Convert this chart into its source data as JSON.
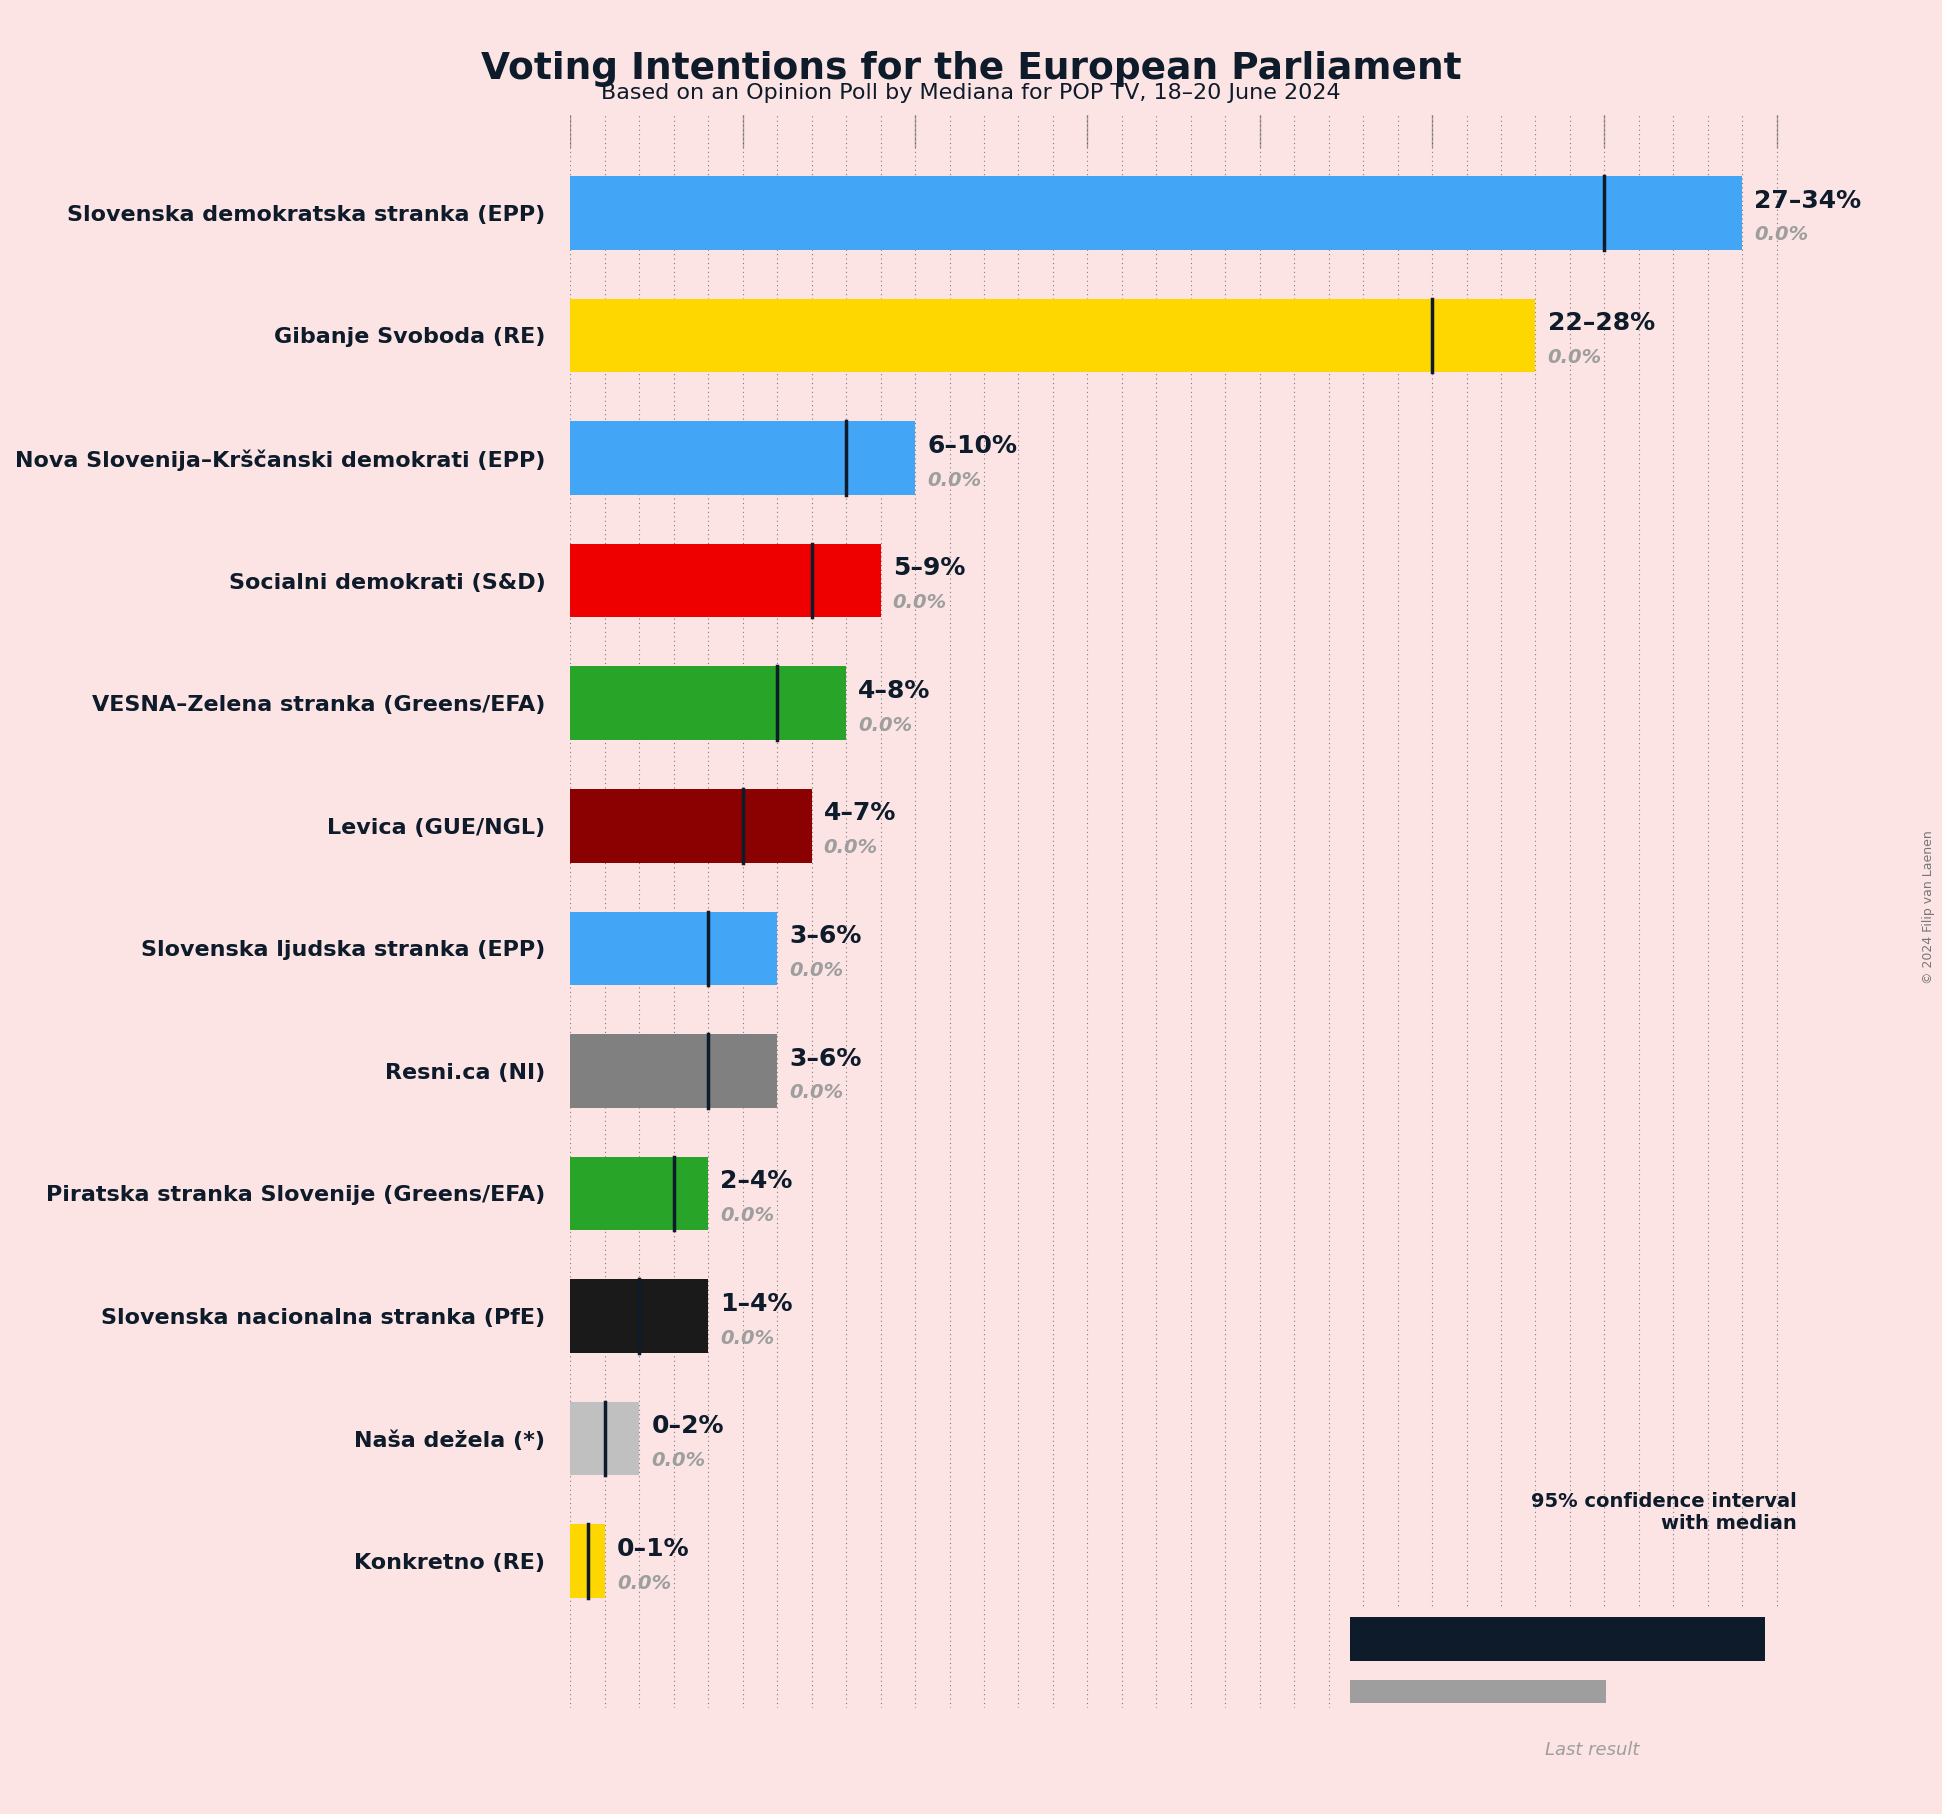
{
  "title": "Voting Intentions for the European Parliament",
  "subtitle": "Based on an Opinion Poll by Mediana for POP TV, 18–20 June 2024",
  "copyright": "© 2024 Filip van Laenen",
  "background_color": "#fce4e4",
  "parties": [
    {
      "name": "Slovenska demokratska stranka (EPP)",
      "low": 27,
      "high": 34,
      "median": 30,
      "last": 0.0,
      "color": "#42A5F5",
      "label": "27–34%"
    },
    {
      "name": "Gibanje Svoboda (RE)",
      "low": 22,
      "high": 28,
      "median": 25,
      "last": 0.0,
      "color": "#FFD700",
      "label": "22–28%"
    },
    {
      "name": "Nova Slovenija–Krščanski demokrati (EPP)",
      "low": 6,
      "high": 10,
      "median": 8,
      "last": 0.0,
      "color": "#42A5F5",
      "label": "6–10%"
    },
    {
      "name": "Socialni demokrati (S&D)",
      "low": 5,
      "high": 9,
      "median": 7,
      "last": 0.0,
      "color": "#EF0000",
      "label": "5–9%"
    },
    {
      "name": "VESNA–Zelena stranka (Greens/EFA)",
      "low": 4,
      "high": 8,
      "median": 6,
      "last": 0.0,
      "color": "#28A428",
      "label": "4–8%"
    },
    {
      "name": "Levica (GUE/NGL)",
      "low": 4,
      "high": 7,
      "median": 5,
      "last": 0.0,
      "color": "#8B0000",
      "label": "4–7%"
    },
    {
      "name": "Slovenska ljudska stranka (EPP)",
      "low": 3,
      "high": 6,
      "median": 4,
      "last": 0.0,
      "color": "#42A5F5",
      "label": "3–6%"
    },
    {
      "name": "Resni.ca (NI)",
      "low": 3,
      "high": 6,
      "median": 4,
      "last": 0.0,
      "color": "#808080",
      "label": "3–6%"
    },
    {
      "name": "Piratska stranka Slovenije (Greens/EFA)",
      "low": 2,
      "high": 4,
      "median": 3,
      "last": 0.0,
      "color": "#28A428",
      "label": "2–4%"
    },
    {
      "name": "Slovenska nacionalna stranka (PfE)",
      "low": 1,
      "high": 4,
      "median": 2,
      "last": 0.0,
      "color": "#1A1A1A",
      "label": "1–4%"
    },
    {
      "name": "Naša dežela (*)",
      "low": 0,
      "high": 2,
      "median": 1,
      "last": 0.0,
      "color": "#C0C0C0",
      "label": "0–2%"
    },
    {
      "name": "Konkretno (RE)",
      "low": 0,
      "high": 1,
      "median": 0.5,
      "last": 0.0,
      "color": "#FFD700",
      "label": "0–1%"
    }
  ],
  "xmax": 36,
  "bar_height": 0.6,
  "last_bar_height": 0.18,
  "grid_color": "#333333",
  "median_line_color": "#0d1b2a",
  "label_color": "#0d1b2a",
  "last_color": "#9E9E9E",
  "legend_ci_color": "#0d1b2a"
}
